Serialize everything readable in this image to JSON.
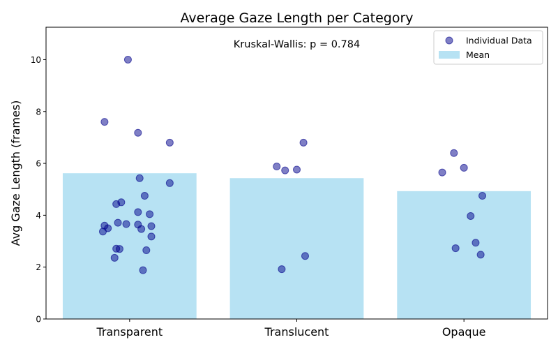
{
  "chart_data": {
    "type": "bar",
    "title": "Average Gaze Length per Category",
    "ylabel": "Avg Gaze Length (frames)",
    "xlabel": "",
    "ylim": [
      0,
      11.25
    ],
    "yticks": [
      "0",
      "2",
      "4",
      "6",
      "8",
      "10"
    ],
    "categories": [
      "Transparent",
      "Translucent",
      "Opaque"
    ],
    "annotation": "Kruskal-Wallis: p = 0.784",
    "legend": {
      "position": "top-right",
      "items": [
        "Individual Data",
        "Mean"
      ]
    },
    "colors": {
      "bar": "#87CEEB",
      "point_fill": "#00008B",
      "point_edge": "#00008B"
    },
    "series": [
      {
        "name": "Mean",
        "values": [
          5.62,
          5.43,
          4.93
        ]
      }
    ],
    "points": [
      {
        "category": "Transparent",
        "x": -0.01,
        "y": 10.0
      },
      {
        "category": "Transparent",
        "x": -0.15,
        "y": 7.6
      },
      {
        "category": "Transparent",
        "x": 0.05,
        "y": 7.18
      },
      {
        "category": "Transparent",
        "x": 0.24,
        "y": 6.8
      },
      {
        "category": "Transparent",
        "x": 0.06,
        "y": 5.43
      },
      {
        "category": "Transparent",
        "x": 0.24,
        "y": 5.24
      },
      {
        "category": "Transparent",
        "x": 0.09,
        "y": 4.75
      },
      {
        "category": "Transparent",
        "x": -0.05,
        "y": 4.5
      },
      {
        "category": "Transparent",
        "x": -0.08,
        "y": 4.43
      },
      {
        "category": "Transparent",
        "x": 0.05,
        "y": 4.12
      },
      {
        "category": "Transparent",
        "x": 0.12,
        "y": 4.04
      },
      {
        "category": "Transparent",
        "x": -0.07,
        "y": 3.71
      },
      {
        "category": "Transparent",
        "x": -0.02,
        "y": 3.66
      },
      {
        "category": "Transparent",
        "x": 0.05,
        "y": 3.64
      },
      {
        "category": "Transparent",
        "x": 0.13,
        "y": 3.58
      },
      {
        "category": "Transparent",
        "x": -0.15,
        "y": 3.6
      },
      {
        "category": "Transparent",
        "x": -0.13,
        "y": 3.5
      },
      {
        "category": "Transparent",
        "x": 0.07,
        "y": 3.47
      },
      {
        "category": "Transparent",
        "x": -0.16,
        "y": 3.37
      },
      {
        "category": "Transparent",
        "x": 0.13,
        "y": 3.18
      },
      {
        "category": "Transparent",
        "x": -0.08,
        "y": 2.71
      },
      {
        "category": "Transparent",
        "x": -0.06,
        "y": 2.7
      },
      {
        "category": "Transparent",
        "x": 0.1,
        "y": 2.65
      },
      {
        "category": "Transparent",
        "x": -0.09,
        "y": 2.36
      },
      {
        "category": "Transparent",
        "x": 0.08,
        "y": 1.88
      },
      {
        "category": "Translucent",
        "x": 0.04,
        "y": 6.8
      },
      {
        "category": "Translucent",
        "x": -0.12,
        "y": 5.88
      },
      {
        "category": "Translucent",
        "x": -0.07,
        "y": 5.73
      },
      {
        "category": "Translucent",
        "x": 0.0,
        "y": 5.76
      },
      {
        "category": "Translucent",
        "x": 0.05,
        "y": 2.43
      },
      {
        "category": "Translucent",
        "x": -0.09,
        "y": 1.92
      },
      {
        "category": "Opaque",
        "x": -0.06,
        "y": 6.4
      },
      {
        "category": "Opaque",
        "x": -0.13,
        "y": 5.65
      },
      {
        "category": "Opaque",
        "x": 0.0,
        "y": 5.83
      },
      {
        "category": "Opaque",
        "x": 0.11,
        "y": 4.75
      },
      {
        "category": "Opaque",
        "x": 0.04,
        "y": 3.97
      },
      {
        "category": "Opaque",
        "x": 0.07,
        "y": 2.94
      },
      {
        "category": "Opaque",
        "x": -0.05,
        "y": 2.73
      },
      {
        "category": "Opaque",
        "x": 0.1,
        "y": 2.48
      }
    ]
  }
}
